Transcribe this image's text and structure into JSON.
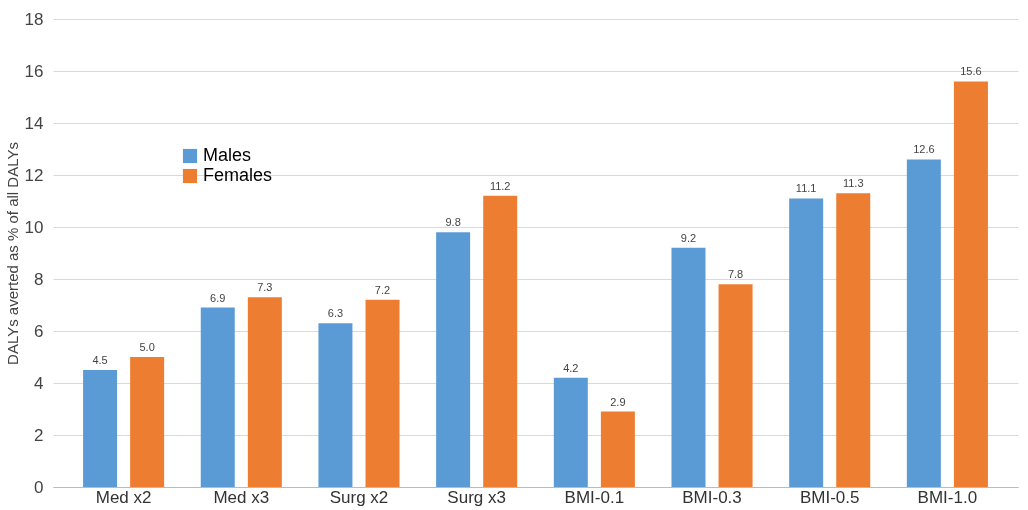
{
  "chart_data": {
    "type": "bar",
    "ylabel": "DALYs averted as % of all DALYs",
    "categories": [
      "Med x2",
      "Med x3",
      "Surg x2",
      "Surg x3",
      "BMI-0.1",
      "BMI-0.3",
      "BMI-0.5",
      "BMI-1.0"
    ],
    "series": [
      {
        "name": "Males",
        "color": "#5b9bd5",
        "values": [
          4.5,
          6.9,
          6.3,
          9.8,
          4.2,
          9.2,
          11.1,
          12.6
        ],
        "value_labels": [
          "4.5",
          "6.9",
          "6.3",
          "9.8",
          "4.2",
          "9.2",
          "11.1",
          "12.6"
        ]
      },
      {
        "name": "Females",
        "color": "#ed7d31",
        "values": [
          5.0,
          7.3,
          7.2,
          11.2,
          2.9,
          7.8,
          11.3,
          15.6
        ],
        "value_labels": [
          "5.0",
          "7.3",
          "7.2",
          "11.2",
          "2.9",
          "7.8",
          "11.3",
          "15.6"
        ]
      }
    ],
    "ylim": [
      0,
      18
    ],
    "yticks": [
      0,
      2,
      4,
      6,
      8,
      10,
      12,
      14,
      16,
      18
    ],
    "grid": "y",
    "legend": "top left"
  }
}
